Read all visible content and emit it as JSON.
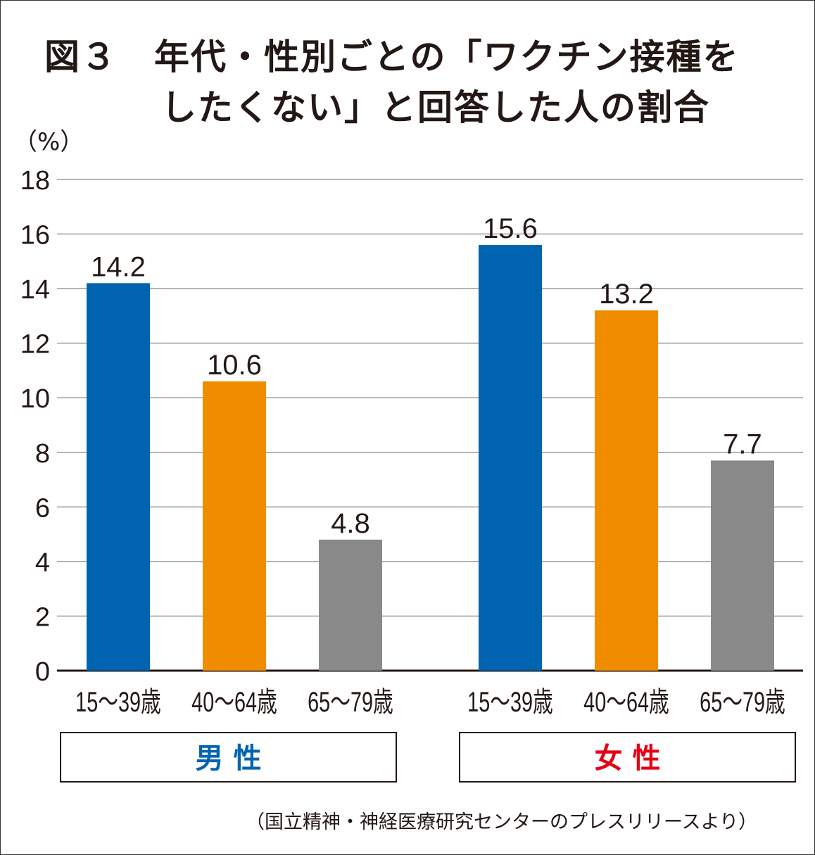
{
  "chart_data": {
    "type": "bar",
    "title_line1": "図３　年代・性別ごとの「ワクチン接種を",
    "title_line2": "したくない」と回答した人の割合",
    "ylabel": "（%）",
    "ylim": [
      0,
      18
    ],
    "yticks": [
      "0",
      "2",
      "4",
      "6",
      "8",
      "10",
      "12",
      "14",
      "16",
      "18"
    ],
    "grid": true,
    "groups": [
      {
        "name": "男 性",
        "color": "#0064b0",
        "categories": [
          "15～39歳",
          "40～64歳",
          "65～79歳"
        ],
        "values": [
          14.2,
          10.6,
          4.8
        ],
        "labels": [
          "14.2",
          "10.6",
          "4.8"
        ]
      },
      {
        "name": "女 性",
        "color": "#e60012",
        "categories": [
          "15～39歳",
          "40～64歳",
          "65～79歳"
        ],
        "values": [
          15.6,
          13.2,
          7.7
        ],
        "labels": [
          "15.6",
          "13.2",
          "7.7"
        ]
      }
    ],
    "bar_colors": [
      "#0064b0",
      "#f08c00",
      "#898989"
    ],
    "source": "（国立精神・神経医療研究センターのプレスリリースより）"
  }
}
